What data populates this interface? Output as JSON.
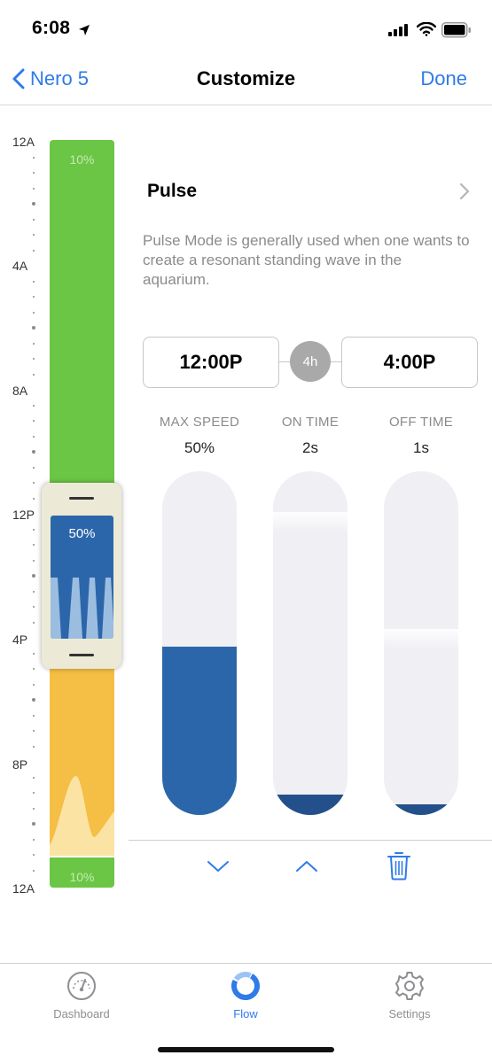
{
  "status": {
    "time": "6:08"
  },
  "nav": {
    "back_label": "Nero 5",
    "title": "Customize",
    "done_label": "Done"
  },
  "timeline": {
    "hour_labels": [
      "12A",
      "4A",
      "8A",
      "12P",
      "4P",
      "8P",
      "12A"
    ],
    "top_segment_label": "10%",
    "bottom_segment_label": "10%",
    "selected_segment_label": "50%"
  },
  "mode": {
    "title": "Pulse",
    "description": "Pulse Mode is generally used when one wants to create a resonant standing wave in the aquarium."
  },
  "schedule": {
    "start": "12:00P",
    "duration": "4h",
    "end": "4:00P"
  },
  "controls": [
    {
      "label": "MAX SPEED",
      "value": "50%",
      "fill_fraction": 0.49
    },
    {
      "label": "ON TIME",
      "value": "2s",
      "fill_fraction": 0.06
    },
    {
      "label": "OFF TIME",
      "value": "1s",
      "fill_fraction": 0.03
    }
  ],
  "tabs": [
    {
      "label": "Dashboard",
      "icon": "gauge-icon",
      "active": false
    },
    {
      "label": "Flow",
      "icon": "flow-ring-icon",
      "active": true
    },
    {
      "label": "Settings",
      "icon": "gear-icon",
      "active": false
    }
  ],
  "colors": {
    "accent": "#2f7be8",
    "green_segment": "#6bc645",
    "yellow_segment": "#f5be45",
    "pulse_blue": "#2c66aa",
    "slider_track": "#efeff4"
  }
}
